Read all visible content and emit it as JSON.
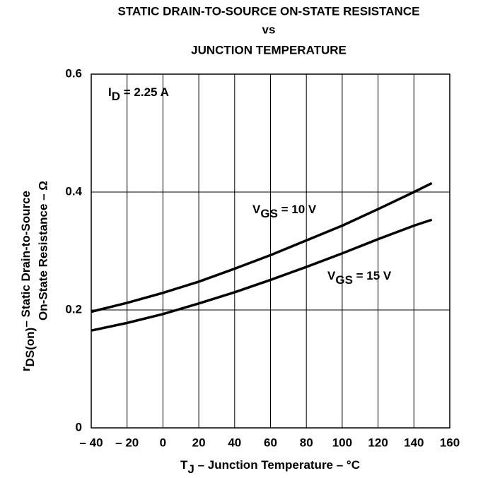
{
  "chart_data": {
    "type": "line",
    "title": [
      "STATIC DRAIN-TO-SOURCE ON-STATE RESISTANCE",
      "vs",
      "JUNCTION TEMPERATURE"
    ],
    "x_label": {
      "symbol": "T",
      "subscript": "J",
      "text": " – Junction Temperature – °C"
    },
    "y_label": [
      {
        "symbol": "r",
        "subscript": "DS(on)",
        "text": "– Static Drain-to-Source"
      },
      "On-State Resistance – Ω"
    ],
    "annotations": [
      {
        "symbol": "I",
        "subscript": "D",
        "text": " = 2.25 A"
      }
    ],
    "x": [
      -40,
      -20,
      0,
      20,
      40,
      60,
      80,
      100,
      120,
      140,
      150
    ],
    "series": [
      {
        "name": {
          "symbol": "V",
          "subscript": "GS",
          "text": " = 10 V"
        },
        "color": "#000000",
        "values": [
          0.197,
          0.212,
          0.229,
          0.248,
          0.27,
          0.293,
          0.318,
          0.343,
          0.371,
          0.4,
          0.415
        ]
      },
      {
        "name": {
          "symbol": "V",
          "subscript": "GS",
          "text": " = 15 V"
        },
        "color": "#000000",
        "values": [
          0.165,
          0.178,
          0.193,
          0.211,
          0.23,
          0.251,
          0.273,
          0.296,
          0.32,
          0.343,
          0.353
        ]
      }
    ],
    "xlim": [
      -40,
      160
    ],
    "xticks": [
      {
        "value": -40,
        "label": "– 40"
      },
      {
        "value": -20,
        "label": "– 20"
      },
      0,
      20,
      40,
      60,
      80,
      100,
      120,
      140,
      160
    ],
    "ylim": [
      0,
      0.6
    ],
    "yticks": [
      0,
      0.2,
      0.4,
      0.6
    ],
    "grid": true
  }
}
